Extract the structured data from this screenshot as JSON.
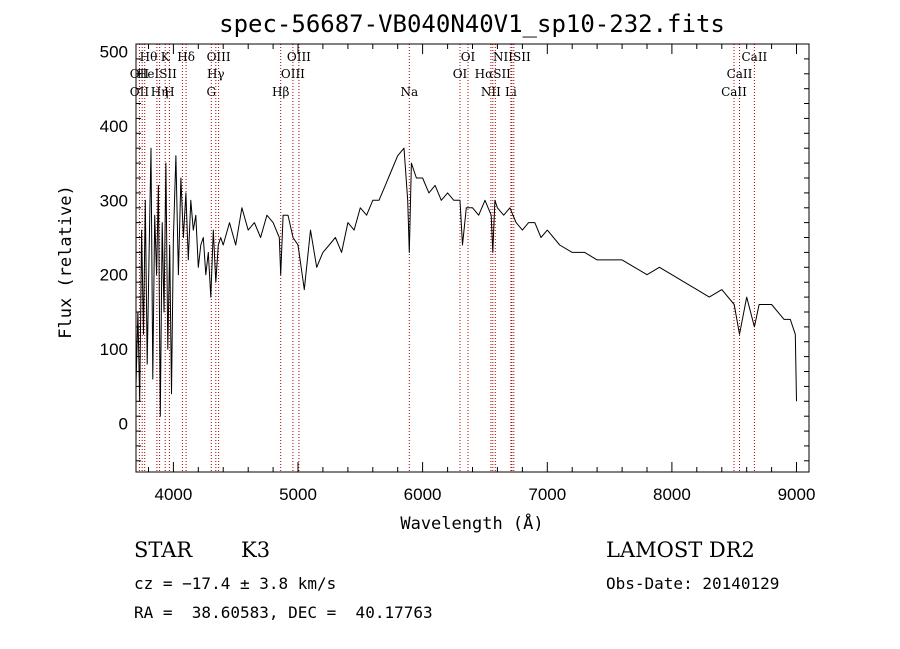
{
  "chart_data": {
    "type": "line",
    "title": "spec-56687-VB040N40V1_sp10-232.fits",
    "xlabel": "Wavelength (Å)",
    "ylabel": "Flux (relative)",
    "xlim": [
      3700,
      9100
    ],
    "ylim": [
      -65,
      510
    ],
    "x_ticks": [
      "4000",
      "5000",
      "6000",
      "7000",
      "8000",
      "9000"
    ],
    "y_ticks": [
      "0",
      "100",
      "200",
      "300",
      "400",
      "500"
    ],
    "grid": false,
    "series": [
      {
        "x": [
          3700,
          3715,
          3730,
          3745,
          3760,
          3775,
          3790,
          3805,
          3820,
          3835,
          3850,
          3865,
          3880,
          3895,
          3910,
          3925,
          3940,
          3955,
          3970,
          3985,
          4000,
          4020,
          4040,
          4060,
          4080,
          4100,
          4120,
          4140,
          4160,
          4180,
          4200,
          4220,
          4240,
          4260,
          4280,
          4300,
          4320,
          4340,
          4360,
          4380,
          4400,
          4450,
          4500,
          4550,
          4600,
          4650,
          4700,
          4750,
          4800,
          4850,
          4861,
          4880,
          4920,
          4960,
          5000,
          5050,
          5100,
          5150,
          5200,
          5250,
          5300,
          5350,
          5400,
          5450,
          5500,
          5550,
          5600,
          5650,
          5700,
          5750,
          5800,
          5850,
          5880,
          5893,
          5910,
          5950,
          6000,
          6050,
          6100,
          6150,
          6200,
          6250,
          6300,
          6320,
          6350,
          6400,
          6450,
          6500,
          6550,
          6563,
          6580,
          6600,
          6650,
          6700,
          6750,
          6800,
          6850,
          6900,
          6950,
          7000,
          7100,
          7200,
          7300,
          7400,
          7500,
          7600,
          7700,
          7800,
          7900,
          8000,
          8100,
          8200,
          8300,
          8400,
          8500,
          8542,
          8600,
          8662,
          8700,
          8800,
          8900,
          8950,
          8990,
          9000
        ],
        "y": [
          50,
          150,
          30,
          260,
          120,
          300,
          80,
          230,
          370,
          60,
          280,
          200,
          320,
          10,
          270,
          150,
          350,
          100,
          240,
          40,
          250,
          360,
          200,
          330,
          250,
          310,
          220,
          300,
          260,
          280,
          210,
          240,
          250,
          200,
          230,
          170,
          260,
          190,
          240,
          250,
          240,
          270,
          240,
          290,
          260,
          270,
          250,
          280,
          270,
          250,
          200,
          280,
          280,
          250,
          240,
          180,
          260,
          210,
          230,
          240,
          250,
          230,
          270,
          260,
          290,
          280,
          300,
          300,
          320,
          340,
          360,
          370,
          300,
          230,
          350,
          330,
          330,
          310,
          320,
          300,
          310,
          300,
          300,
          240,
          290,
          290,
          280,
          300,
          280,
          230,
          300,
          290,
          280,
          290,
          270,
          260,
          270,
          270,
          250,
          260,
          240,
          230,
          230,
          220,
          220,
          220,
          210,
          200,
          210,
          200,
          190,
          180,
          170,
          180,
          160,
          120,
          170,
          130,
          160,
          160,
          140,
          140,
          120,
          30
        ]
      }
    ],
    "lines": [
      {
        "wavelength": 3727,
        "label": "OII"
      },
      {
        "wavelength": 3750,
        "label": "Hθ"
      },
      {
        "wavelength": 3770,
        "label": "Hη"
      },
      {
        "wavelength": 3868,
        "label": "HeI"
      },
      {
        "wavelength": 3889,
        "label": "Hη"
      },
      {
        "wavelength": 3934,
        "label": "K"
      },
      {
        "wavelength": 3968,
        "label": "H"
      },
      {
        "wavelength": 4072,
        "label": "SII"
      },
      {
        "wavelength": 4102,
        "label": "Hδ"
      },
      {
        "wavelength": 4304,
        "label": "G"
      },
      {
        "wavelength": 4340,
        "label": "Hγ"
      },
      {
        "wavelength": 4363,
        "label": "OIII"
      },
      {
        "wavelength": 4861,
        "label": "Hβ"
      },
      {
        "wavelength": 4959,
        "label": "OIII"
      },
      {
        "wavelength": 5007,
        "label": "OIII"
      },
      {
        "wavelength": 5893,
        "label": "Na"
      },
      {
        "wavelength": 6300,
        "label": "OI"
      },
      {
        "wavelength": 6364,
        "label": "OI"
      },
      {
        "wavelength": 6548,
        "label": "NII"
      },
      {
        "wavelength": 6563,
        "label": "Hα"
      },
      {
        "wavelength": 6583,
        "label": "NII"
      },
      {
        "wavelength": 6708,
        "label": "Li"
      },
      {
        "wavelength": 6716,
        "label": "SII"
      },
      {
        "wavelength": 6731,
        "label": "SII"
      },
      {
        "wavelength": 8498,
        "label": "CaII"
      },
      {
        "wavelength": 8542,
        "label": "CaII"
      },
      {
        "wavelength": 8662,
        "label": "CaII"
      }
    ],
    "labels_row1": [
      "Hθ",
      "K",
      "Hδ",
      "OIII",
      "OIII",
      "OI",
      "NIISII",
      "CaII"
    ],
    "labels_row2": [
      "OII",
      "HeISII",
      "Hγ",
      "OIII",
      "OI",
      "HαSII",
      "CaII"
    ],
    "labels_row3": [
      "OII",
      "Hη",
      "H",
      "G",
      "Hβ",
      "Na",
      "NII",
      "Li",
      "CaII"
    ],
    "colors": {
      "spectrum": "#000000",
      "line_marker": "#aa0000",
      "axis": "#000000"
    }
  },
  "info": {
    "object_class": "STAR",
    "subclass": "K3",
    "survey": "LAMOST DR2",
    "redshift": "cz = −17.4 ± 3.8 km/s",
    "obs_date": "Obs-Date: 20140129",
    "coords": "RA =  38.60583, DEC =  40.17763"
  }
}
